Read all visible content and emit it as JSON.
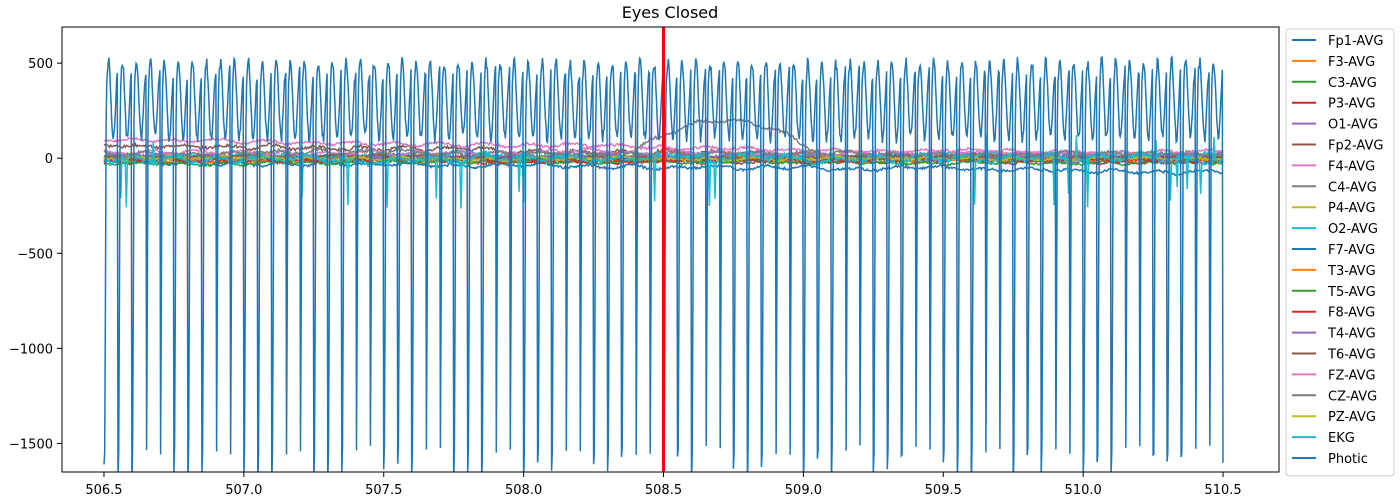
{
  "chart_data": {
    "type": "line",
    "title": "Eyes Closed",
    "xlabel": "",
    "ylabel": "",
    "xlim": [
      506.35,
      510.7
    ],
    "ylim": [
      -1650,
      690
    ],
    "x_ticks": [
      506.5,
      507.0,
      507.5,
      508.0,
      508.5,
      509.0,
      509.5,
      510.0,
      510.5
    ],
    "x_tick_labels": [
      "506.5",
      "507.0",
      "507.5",
      "508.0",
      "508.5",
      "509.0",
      "509.5",
      "510.0",
      "510.5"
    ],
    "y_ticks": [
      500,
      0,
      -500,
      -1000,
      -1500
    ],
    "y_tick_labels": [
      "500",
      "0",
      "−500",
      "−1000",
      "−1500"
    ],
    "x_range": [
      506.5,
      510.5
    ],
    "grid": false,
    "legend_position": "outside-right",
    "marker_line": {
      "x": 508.5,
      "color": "#ff0000"
    },
    "series": [
      {
        "name": "Fp1-AVG",
        "color": "#1f77b4",
        "offset": 5,
        "amplitude": 12,
        "seed": 1
      },
      {
        "name": "F3-AVG",
        "color": "#ff7f0e",
        "offset": 10,
        "amplitude": 12,
        "seed": 2
      },
      {
        "name": "C3-AVG",
        "color": "#2ca02c",
        "offset": -5,
        "amplitude": 10,
        "seed": 3
      },
      {
        "name": "P3-AVG",
        "color": "#d62728",
        "offset": -15,
        "amplitude": 12,
        "seed": 4
      },
      {
        "name": "O1-AVG",
        "color": "#9467bd",
        "offset": 0,
        "amplitude": 10,
        "seed": 5
      },
      {
        "name": "Fp2-AVG",
        "color": "#8c564b",
        "offset": 70,
        "amplitude": 15,
        "seed": 6
      },
      {
        "name": "F4-AVG",
        "color": "#e377c2",
        "offset": 100,
        "amplitude": 12,
        "seed": 7
      },
      {
        "name": "C4-AVG",
        "color": "#7f7f7f",
        "offset": 10,
        "amplitude": 15,
        "seed": 8
      },
      {
        "name": "P4-AVG",
        "color": "#bcbd22",
        "offset": 5,
        "amplitude": 10,
        "seed": 9
      },
      {
        "name": "O2-AVG",
        "color": "#17becf",
        "offset": 10,
        "amplitude": 20,
        "seed": 10
      },
      {
        "name": "F7-AVG",
        "color": "#1f77b4",
        "offset": -20,
        "amplitude": 12,
        "seed": 11
      },
      {
        "name": "T3-AVG",
        "color": "#ff7f0e",
        "offset": -10,
        "amplitude": 10,
        "seed": 12
      },
      {
        "name": "T5-AVG",
        "color": "#2ca02c",
        "offset": -25,
        "amplitude": 10,
        "seed": 13
      },
      {
        "name": "F8-AVG",
        "color": "#d62728",
        "offset": -10,
        "amplitude": 12,
        "seed": 14
      },
      {
        "name": "T4-AVG",
        "color": "#9467bd",
        "offset": 15,
        "amplitude": 10,
        "seed": 15
      },
      {
        "name": "T6-AVG",
        "color": "#8c564b",
        "offset": 5,
        "amplitude": 10,
        "seed": 16
      },
      {
        "name": "FZ-AVG",
        "color": "#e377c2",
        "offset": 30,
        "amplitude": 12,
        "seed": 17
      },
      {
        "name": "CZ-AVG",
        "color": "#7f7f7f",
        "offset": 20,
        "amplitude": 15,
        "seed": 18
      },
      {
        "name": "PZ-AVG",
        "color": "#bcbd22",
        "offset": 0,
        "amplitude": 10,
        "seed": 19
      },
      {
        "name": "EKG",
        "color": "#17becf",
        "offset": 0,
        "amplitude": 25,
        "seed": 20
      },
      {
        "name": "Photic",
        "color": "#1f77b4",
        "peak": 580,
        "trough": -1560,
        "cycle_seconds": 0.05,
        "seed": 21
      }
    ]
  }
}
